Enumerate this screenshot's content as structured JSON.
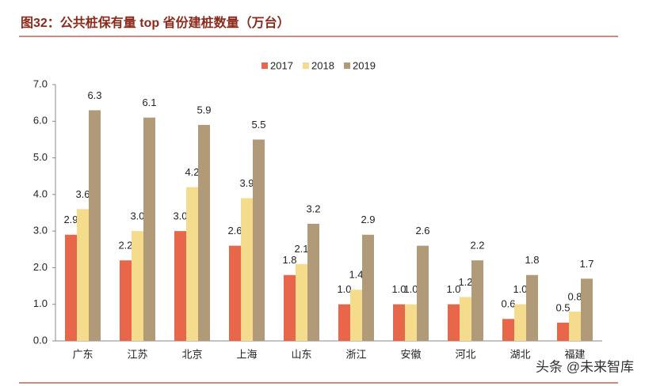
{
  "chart_data": {
    "type": "bar",
    "title": "图32：公共桩保有量 top 省份建桩数量（万台）",
    "watermark": "头条 @未来智库",
    "categories": [
      "广东",
      "江苏",
      "北京",
      "上海",
      "山东",
      "浙江",
      "安徽",
      "河北",
      "湖北",
      "福建"
    ],
    "series": [
      {
        "name": "2017",
        "color": "#e8674a",
        "values": [
          2.9,
          2.2,
          3.0,
          2.6,
          1.8,
          1.0,
          1.0,
          1.0,
          0.6,
          0.5
        ],
        "value_labels": [
          "2.9",
          "2.2",
          "3.0",
          "2.6",
          "1.8",
          "1.0",
          "1.0",
          "1.0",
          "0.6",
          "0.5"
        ]
      },
      {
        "name": "2018",
        "color": "#f5dc8c",
        "values": [
          3.6,
          3.0,
          4.2,
          3.9,
          2.1,
          1.4,
          1.0,
          1.2,
          1.0,
          0.8
        ],
        "value_labels": [
          "3.6",
          "3.0",
          "4.2",
          "3.9",
          "2.1",
          "1.4",
          "1.0",
          "1.2",
          "1.0",
          "0.8"
        ]
      },
      {
        "name": "2019",
        "color": "#b09a78",
        "values": [
          6.3,
          6.1,
          5.9,
          5.5,
          3.2,
          2.9,
          2.6,
          2.2,
          1.8,
          1.7
        ],
        "value_labels": [
          "6.3",
          "6.1",
          "5.9",
          "5.5",
          "3.2",
          "2.9",
          "2.6",
          "2.2",
          "1.8",
          "1.7"
        ]
      }
    ],
    "ylim": [
      0,
      7
    ],
    "yticks": [
      {
        "value": 0,
        "label": "0.0"
      },
      {
        "value": 1,
        "label": "1.0"
      },
      {
        "value": 2,
        "label": "2.0"
      },
      {
        "value": 3,
        "label": "3.0"
      },
      {
        "value": 4,
        "label": "4.0"
      },
      {
        "value": 5,
        "label": "5.0"
      },
      {
        "value": 6,
        "label": "6.0"
      },
      {
        "value": 7,
        "label": "7.0"
      }
    ],
    "grid": false,
    "legend": "top"
  }
}
